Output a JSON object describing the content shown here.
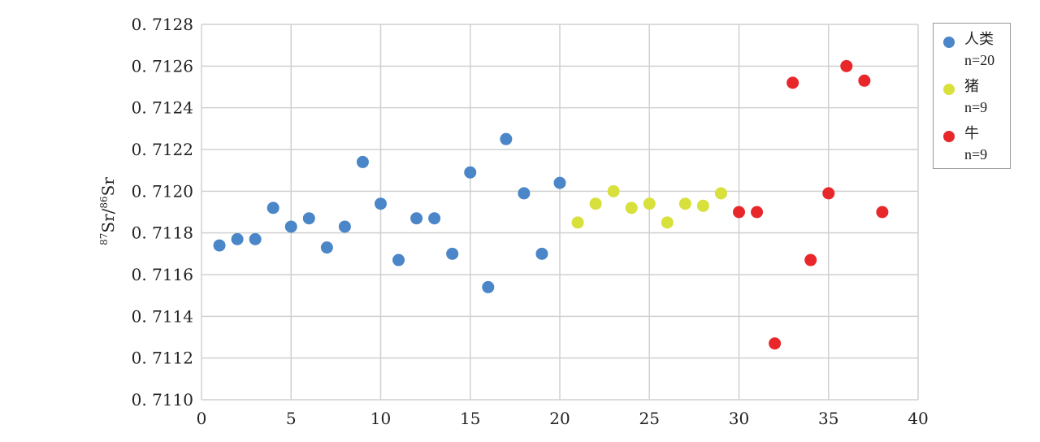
{
  "chart_data": {
    "type": "scatter",
    "ylabel_sup1": "87",
    "ylabel_el1": "Sr/",
    "ylabel_sup2": "86",
    "ylabel_el2": "Sr",
    "xlim": [
      0,
      40
    ],
    "ylim": [
      0.711,
      0.7128
    ],
    "x_ticks": [
      "0",
      "5",
      "10",
      "15",
      "20",
      "25",
      "30",
      "35",
      "40"
    ],
    "y_ticks": [
      "0.7110",
      "0.7112",
      "0.7114",
      "0.7116",
      "0.7118",
      "0.7120",
      "0.7122",
      "0.7124",
      "0.7126",
      "0.7128"
    ],
    "grid": true,
    "legend_position": "right",
    "series": [
      {
        "name": "人类",
        "n_label": "n=20",
        "color": "#4a86c8",
        "points": [
          [
            1,
            0.71174
          ],
          [
            2,
            0.71177
          ],
          [
            3,
            0.71177
          ],
          [
            4,
            0.71192
          ],
          [
            5,
            0.71183
          ],
          [
            6,
            0.71187
          ],
          [
            7,
            0.71173
          ],
          [
            8,
            0.71183
          ],
          [
            9,
            0.71214
          ],
          [
            10,
            0.71194
          ],
          [
            11,
            0.71167
          ],
          [
            12,
            0.71187
          ],
          [
            13,
            0.71187
          ],
          [
            14,
            0.7117
          ],
          [
            15,
            0.71209
          ],
          [
            16,
            0.71154
          ],
          [
            17,
            0.71225
          ],
          [
            18,
            0.71199
          ],
          [
            19,
            0.7117
          ],
          [
            20,
            0.71204
          ]
        ]
      },
      {
        "name": "猪",
        "n_label": "n=9",
        "color": "#d8e03c",
        "points": [
          [
            21,
            0.71185
          ],
          [
            22,
            0.71194
          ],
          [
            23,
            0.712
          ],
          [
            24,
            0.71192
          ],
          [
            25,
            0.71194
          ],
          [
            26,
            0.71185
          ],
          [
            27,
            0.71194
          ],
          [
            28,
            0.71193
          ],
          [
            29,
            0.71199
          ]
        ]
      },
      {
        "name": "牛",
        "n_label": "n=9",
        "color": "#e8272a",
        "points": [
          [
            30,
            0.7119
          ],
          [
            31,
            0.7119
          ],
          [
            32,
            0.71127
          ],
          [
            33,
            0.71252
          ],
          [
            34,
            0.71167
          ],
          [
            35,
            0.71199
          ],
          [
            36,
            0.7126
          ],
          [
            37,
            0.71253
          ],
          [
            38,
            0.7119
          ]
        ]
      }
    ]
  }
}
